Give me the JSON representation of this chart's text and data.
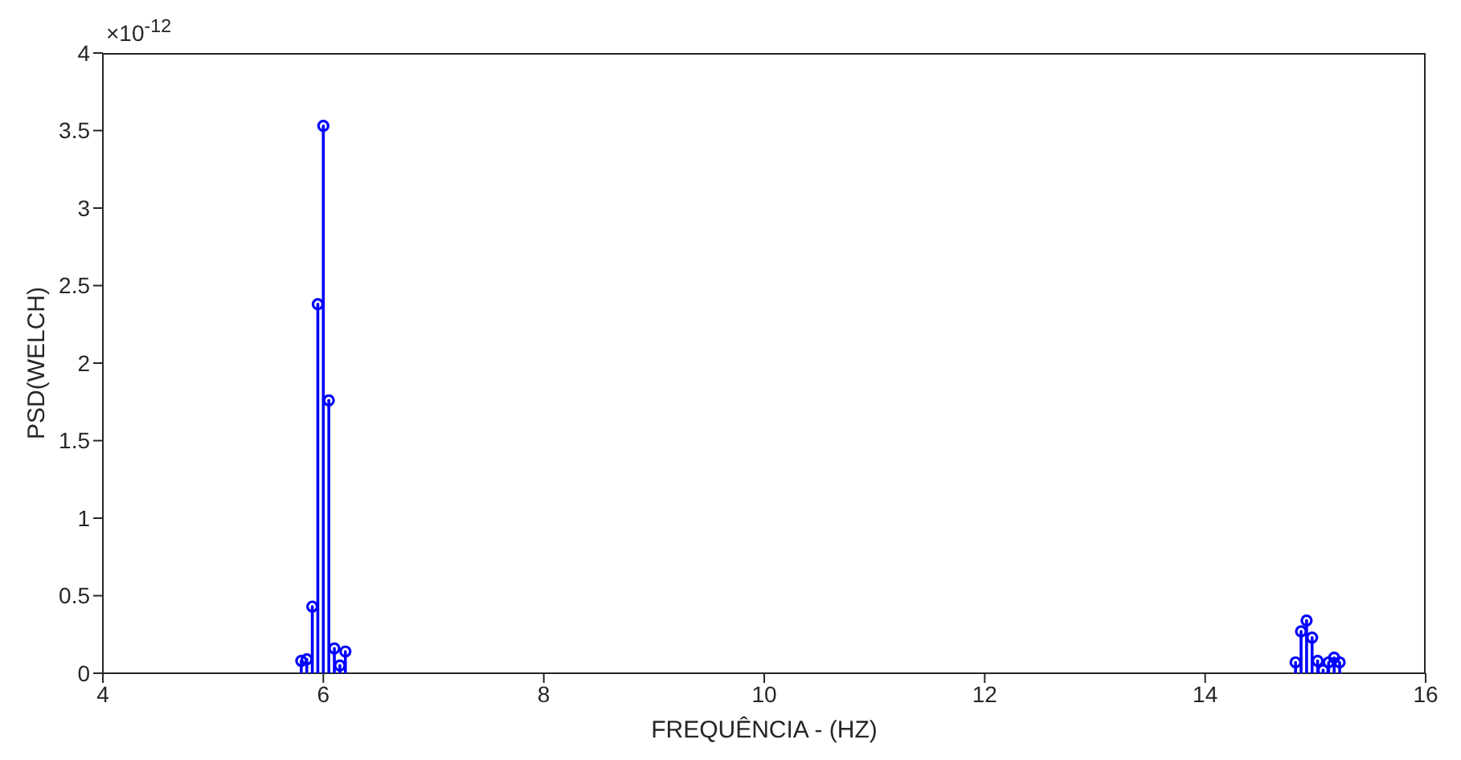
{
  "chart_data": {
    "type": "lollipop",
    "xlabel": "FREQUÊNCIA - (HZ)",
    "ylabel": "PSD(WELCH)",
    "annotations": [
      "×10$^{-12}$"
    ],
    "xlim": [
      4,
      16
    ],
    "xticks": [
      4,
      6,
      8,
      10,
      12,
      14,
      16
    ],
    "ylim": [
      0,
      4
    ],
    "yticks": [
      0,
      0.5,
      1,
      1.5,
      2,
      2.5,
      3,
      3.5,
      4
    ],
    "marker": "circle",
    "line_style": "solid",
    "series": [
      {
        "color": "#0000ff",
        "x": [
          5.8,
          5.85,
          5.9,
          5.95,
          6.0,
          6.05,
          6.1,
          6.15,
          6.2,
          14.82,
          14.87,
          14.92,
          14.97,
          15.02,
          15.07,
          15.12,
          15.17,
          15.22
        ],
        "values": [
          0.08,
          0.09,
          0.43,
          2.38,
          3.53,
          1.76,
          0.16,
          0.05,
          0.14,
          0.07,
          0.27,
          0.34,
          0.23,
          0.08,
          0.02,
          0.07,
          0.1,
          0.07
        ]
      }
    ]
  }
}
